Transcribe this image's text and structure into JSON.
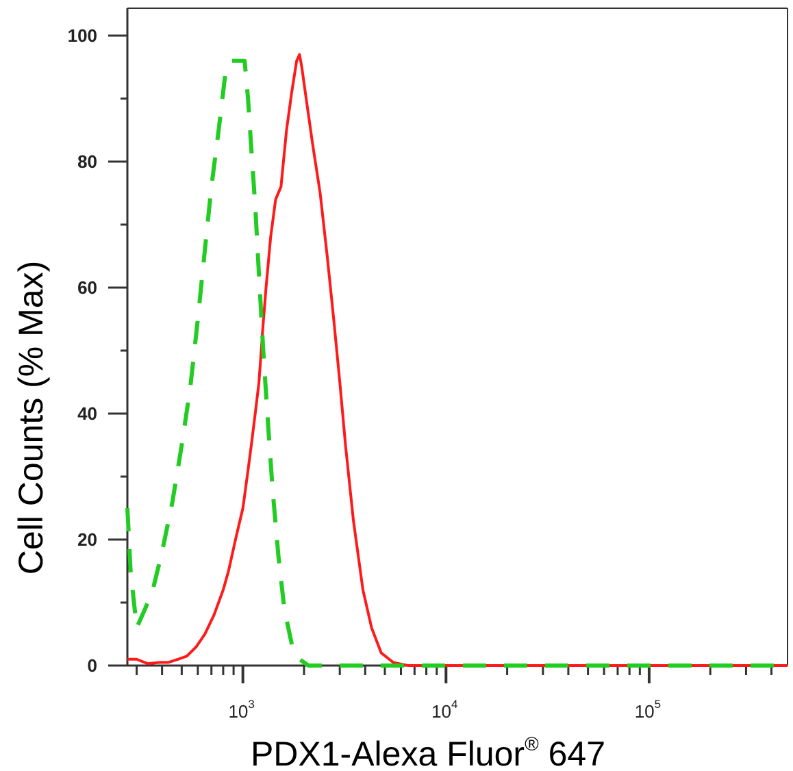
{
  "chart_data": {
    "type": "line",
    "title": "",
    "xlabel": "PDX1-Alexa Fluor",
    "xlabel_superscript": "®",
    "xlabel_suffix": " 647",
    "ylabel": "Cell Counts (% Max)",
    "x_scale": "log",
    "xlim": [
      270,
      480000
    ],
    "ylim": [
      0,
      105
    ],
    "y_ticks": [
      0,
      20,
      40,
      60,
      80,
      100
    ],
    "x_ticks": [
      {
        "value": 1000,
        "base": "10",
        "exp": "3"
      },
      {
        "value": 10000,
        "base": "10",
        "exp": "4"
      },
      {
        "value": 100000,
        "base": "10",
        "exp": "5"
      }
    ],
    "grid": false,
    "legend": "none",
    "series": [
      {
        "color": "#ff1a1a",
        "style": "solid",
        "x": [
          270,
          300,
          340,
          390,
          430,
          480,
          530,
          590,
          650,
          720,
          800,
          850,
          920,
          1000,
          1060,
          1100,
          1150,
          1200,
          1250,
          1300,
          1370,
          1450,
          1540,
          1640,
          1740,
          1840,
          1900,
          1950,
          2050,
          2200,
          2400,
          2600,
          2800,
          3000,
          3200,
          3500,
          3900,
          4300,
          4800,
          5500,
          6500,
          8000,
          20000,
          100000,
          480000
        ],
        "y": [
          1,
          1,
          0.3,
          0.5,
          0.5,
          1,
          1.5,
          3,
          5,
          8,
          12,
          15,
          20,
          25,
          31,
          35,
          40,
          45,
          53,
          60,
          68,
          74,
          76,
          85,
          91,
          96,
          97,
          95,
          90,
          83,
          75,
          65,
          55,
          45,
          35,
          23,
          12,
          6,
          2,
          0.5,
          0,
          0,
          0,
          0,
          0
        ]
      },
      {
        "color": "#22cc22",
        "style": "dashed",
        "x": [
          270,
          280,
          300,
          330,
          360,
          400,
          450,
          500,
          550,
          600,
          650,
          700,
          760,
          820,
          870,
          920,
          980,
          1020,
          1060,
          1100,
          1150,
          1200,
          1260,
          1320,
          1400,
          1500,
          1600,
          1750,
          1900,
          2100,
          2500,
          3500,
          6000,
          20000,
          100000,
          480000
        ],
        "y": [
          25,
          15,
          6,
          9,
          12,
          18,
          26,
          35,
          44,
          55,
          66,
          76,
          85,
          94,
          96,
          96,
          96,
          96,
          90,
          82,
          73,
          62,
          50,
          40,
          28,
          17,
          9,
          3,
          1,
          0,
          0,
          0,
          0,
          0,
          0,
          0
        ]
      }
    ]
  }
}
